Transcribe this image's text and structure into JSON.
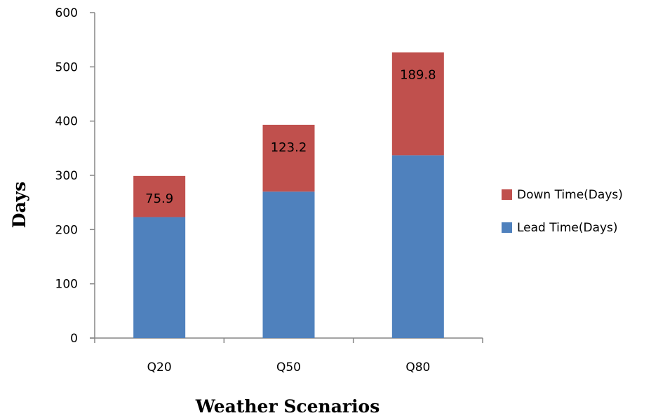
{
  "chart_data": {
    "type": "bar",
    "stacked": true,
    "categories": [
      "Q20",
      "Q50",
      "Q80"
    ],
    "series": [
      {
        "name": "Lead Time(Days)",
        "values": [
          223,
          270,
          337
        ],
        "color": "#4F81BD",
        "labels": [
          "",
          "",
          ""
        ]
      },
      {
        "name": "Down Time(Days)",
        "values": [
          75.9,
          123.2,
          189.8
        ],
        "color": "#C0504D",
        "labels": [
          "75.9",
          "123.2",
          "189.8"
        ]
      }
    ],
    "title": "",
    "xlabel": "Weather Scenarios",
    "ylabel": "Days",
    "ylim": [
      0,
      600
    ],
    "yticks": [
      "0",
      "100",
      "200",
      "300",
      "400",
      "500",
      "600"
    ],
    "legend_position": "right",
    "legend_order": [
      "Down Time(Days)",
      "Lead Time(Days)"
    ],
    "grid": false
  }
}
